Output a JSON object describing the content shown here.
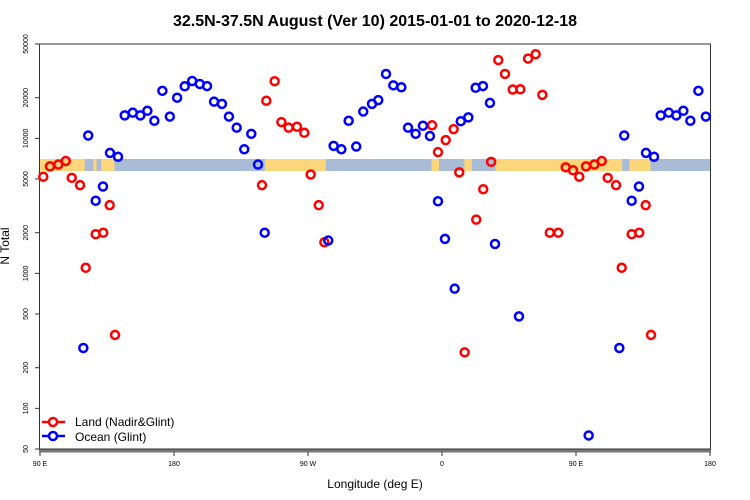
{
  "chart_data": {
    "type": "scatter",
    "title": "32.5N-37.5N August (Ver 10)   2015-01-01 to 2020-12-18",
    "xlabel": "Longitude (deg E)",
    "ylabel": "N Total",
    "xlim": [
      90,
      540
    ],
    "ylim": [
      50,
      50000
    ],
    "yscale": "log",
    "x_ticks": [
      90,
      180,
      270,
      360,
      450,
      540
    ],
    "x_tick_labels": [
      "90 E",
      "180",
      "90 W",
      "0",
      "90 E",
      "180"
    ],
    "y_ticks": [
      50000,
      20000,
      10000,
      5000,
      2000,
      1000,
      500,
      200,
      100,
      50
    ],
    "y_tick_labels": [
      "50000",
      "20000",
      "10000",
      "5000",
      "2000",
      "1000",
      "500",
      "200",
      "100",
      "50"
    ],
    "grid": false,
    "legend_position": "bottom-left",
    "colors": {
      "land": "#ff0000",
      "ocean": "#0000ff",
      "map_land": "#fcd67a",
      "map_ocean": "#a8bcd8"
    },
    "series": [
      {
        "name": "Land (Nadir&Glint)",
        "color": "#ff0000",
        "points": [
          [
            92.2,
            5200
          ],
          [
            96.7,
            6200
          ],
          [
            102.3,
            6400
          ],
          [
            107.3,
            6800
          ],
          [
            111.3,
            5100
          ],
          [
            116.9,
            4500
          ],
          [
            120.7,
            1100
          ],
          [
            127.4,
            1950
          ],
          [
            132.5,
            2000
          ],
          [
            136.8,
            3200
          ],
          [
            140.4,
            350
          ],
          [
            239.1,
            4500
          ],
          [
            242,
            19000
          ],
          [
            247.6,
            26500
          ],
          [
            252.1,
            13200
          ],
          [
            257,
            12000
          ],
          [
            262.6,
            12200
          ],
          [
            267.5,
            11000
          ],
          [
            271.8,
            5400
          ],
          [
            277.2,
            3200
          ],
          [
            281,
            1700
          ],
          [
            353.3,
            12500
          ],
          [
            357.3,
            7900
          ],
          [
            362.5,
            9700
          ],
          [
            367.8,
            11700
          ],
          [
            371.6,
            5600
          ],
          [
            375.2,
            260
          ],
          [
            383,
            2500
          ],
          [
            387.7,
            4200
          ],
          [
            393,
            6700
          ],
          [
            397.8,
            38000
          ],
          [
            402.3,
            30000
          ],
          [
            407.5,
            23000
          ],
          [
            412.6,
            23100
          ],
          [
            417.8,
            39000
          ],
          [
            422.9,
            42000
          ],
          [
            427.4,
            21000
          ],
          [
            432.4,
            2000
          ],
          [
            438.1,
            2000
          ],
          [
            443.1,
            6100
          ],
          [
            448,
            5800
          ],
          [
            452.2,
            5200
          ],
          [
            456.7,
            6200
          ],
          [
            462.3,
            6400
          ],
          [
            467.3,
            6800
          ],
          [
            471.3,
            5100
          ],
          [
            476.9,
            4500
          ],
          [
            480.7,
            1100
          ],
          [
            487.4,
            1950
          ],
          [
            492.5,
            2000
          ],
          [
            496.8,
            3200
          ],
          [
            500.4,
            350
          ]
        ]
      },
      {
        "name": "Ocean (Glint)",
        "color": "#0000ff",
        "points": [
          [
            119.1,
            280
          ],
          [
            122.4,
            10500
          ],
          [
            127.4,
            3450
          ],
          [
            132.3,
            4400
          ],
          [
            137,
            7800
          ],
          [
            142.4,
            7300
          ],
          [
            146.9,
            14800
          ],
          [
            152.3,
            15500
          ],
          [
            157.4,
            14800
          ],
          [
            162.1,
            16000
          ],
          [
            166.8,
            13500
          ],
          [
            172.2,
            22500
          ],
          [
            177.2,
            14500
          ],
          [
            182.1,
            20000
          ],
          [
            187.2,
            24300
          ],
          [
            192.2,
            26600
          ],
          [
            197.3,
            25300
          ],
          [
            202.2,
            24400
          ],
          [
            206.9,
            18700
          ],
          [
            212.2,
            18000
          ],
          [
            216.9,
            14500
          ],
          [
            222.1,
            12000
          ],
          [
            227.2,
            8300
          ],
          [
            231.9,
            10800
          ],
          [
            236.4,
            6400
          ],
          [
            240.9,
            2000
          ],
          [
            283.6,
            1750
          ],
          [
            287.2,
            8800
          ],
          [
            292.4,
            8300
          ],
          [
            297.3,
            13500
          ],
          [
            302.4,
            8700
          ],
          [
            307.1,
            15800
          ],
          [
            313,
            18000
          ],
          [
            317.2,
            19200
          ],
          [
            322.4,
            30000
          ],
          [
            327.3,
            24700
          ],
          [
            332.7,
            23900
          ],
          [
            337.2,
            12000
          ],
          [
            342.3,
            10800
          ],
          [
            347.2,
            12400
          ],
          [
            351.9,
            10400
          ],
          [
            357.3,
            3420
          ],
          [
            362,
            1800
          ],
          [
            368.5,
            770
          ],
          [
            372.6,
            13400
          ],
          [
            377.7,
            14300
          ],
          [
            382.6,
            23700
          ],
          [
            387.5,
            24400
          ],
          [
            392.2,
            18300
          ],
          [
            395.6,
            1650
          ],
          [
            411.7,
            480
          ],
          [
            458.5,
            63
          ],
          [
            479.1,
            280
          ],
          [
            482.4,
            10500
          ],
          [
            487.4,
            3450
          ],
          [
            492.3,
            4400
          ],
          [
            497,
            7800
          ],
          [
            502.4,
            7300
          ],
          [
            506.9,
            14800
          ],
          [
            512.3,
            15500
          ],
          [
            517.4,
            14800
          ],
          [
            522.1,
            16000
          ],
          [
            526.8,
            13500
          ],
          [
            532.2,
            22500
          ],
          [
            537.2,
            14500
          ]
        ]
      }
    ]
  }
}
